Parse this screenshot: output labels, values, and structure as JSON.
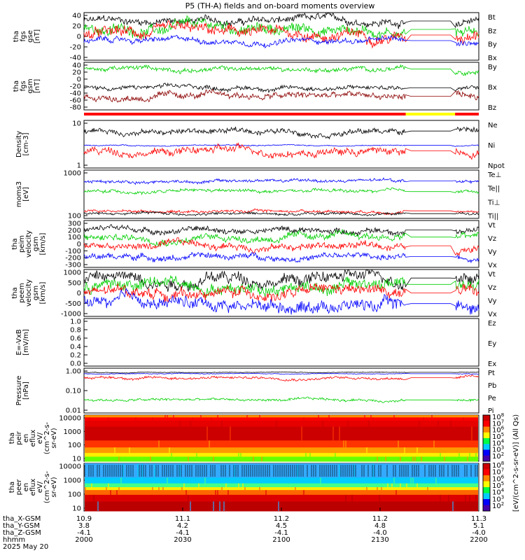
{
  "colors": {
    "black": "#000000",
    "red": "#ff0000",
    "green": "#00d000",
    "blue": "#0000ff",
    "darkred": "#8b0000",
    "yellow": "#ffff00"
  },
  "chart_data": {
    "type": "line",
    "title": "P5 (TH-A) fields and on-board moments overview",
    "x_ticks": [
      {
        "label": "10.9",
        "pos": "2000"
      },
      {
        "label": "11.1",
        "pos": "2030"
      },
      {
        "label": "11.2",
        "pos": "2100"
      },
      {
        "label": "11.2",
        "pos": "2130"
      },
      {
        "label": "11.3",
        "pos": "2200"
      }
    ],
    "x_range": [
      "2000",
      "2200"
    ],
    "panels": [
      {
        "id": "fgs",
        "ylabel": [
          "tha",
          "fgs",
          "gse",
          "[nT]"
        ],
        "yticks": [
          "40",
          "20",
          "0",
          "-20",
          "-40"
        ],
        "ylim": [
          -40,
          45
        ],
        "legend": [
          {
            "text": "Bt",
            "color": "black"
          },
          {
            "text": "Bz",
            "color": "red"
          },
          {
            "text": "By",
            "color": "green"
          },
          {
            "text": "Bx",
            "color": "blue"
          }
        ],
        "series": [
          {
            "color": "black",
            "base": 30,
            "amp": 8
          },
          {
            "color": "green",
            "base": 15,
            "amp": 12
          },
          {
            "color": "red",
            "base": 5,
            "amp": 12
          },
          {
            "color": "blue",
            "base": -5,
            "amp": 6
          }
        ]
      },
      {
        "id": "fgs_gsm",
        "ylabel": [
          "tha",
          "fgs",
          "gsm",
          "[nT]"
        ],
        "yticks": [
          "40",
          "20",
          "0",
          "-20",
          "-40",
          "-60",
          "-80"
        ],
        "ylim": [
          -95,
          45
        ],
        "legend": [
          {
            "text": "By",
            "color": "green"
          },
          {
            "text": "Bx",
            "color": "black"
          },
          {
            "text": "Bz",
            "color": "darkred"
          }
        ],
        "series": [
          {
            "color": "green",
            "base": 25,
            "amp": 8
          },
          {
            "color": "black",
            "base": -30,
            "amp": 8
          },
          {
            "color": "darkred",
            "base": -55,
            "amp": 12
          }
        ]
      },
      {
        "id": "mode_bar",
        "ylabel": [],
        "yticks": [],
        "legend": [],
        "bar_segments": [
          {
            "from": 0.0,
            "to": 0.815,
            "color": "red"
          },
          {
            "from": 0.815,
            "to": 0.94,
            "color": "yellow"
          },
          {
            "from": 0.94,
            "to": 1.0,
            "color": "red"
          }
        ]
      },
      {
        "id": "density",
        "ylabel": [
          "Density",
          "[cm-3]"
        ],
        "yticks": [
          "10",
          "1"
        ],
        "log": true,
        "ylim": [
          0.5,
          30
        ],
        "legend": [
          {
            "text": "Ne",
            "color": "red"
          },
          {
            "text": "Ni",
            "color": "black"
          },
          {
            "text": "Npot",
            "color": "blue"
          }
        ],
        "series": [
          {
            "color": "black",
            "base": 12,
            "amp": 0.25
          },
          {
            "color": "blue",
            "base": 3.5,
            "amp": 0.05
          },
          {
            "color": "red",
            "base": 2.2,
            "amp": 0.35
          }
        ]
      },
      {
        "id": "temperature",
        "ylabel": [
          "moms3",
          "[eV]"
        ],
        "yticks": [
          "1000",
          "100"
        ],
        "log": true,
        "ylim": [
          50,
          1500
        ],
        "legend": [
          {
            "text": "Te⊥",
            "color": "red"
          },
          {
            "text": "Te||",
            "color": "black"
          },
          {
            "text": "Ti⊥",
            "color": "green"
          },
          {
            "text": "Ti||",
            "color": "green"
          }
        ],
        "series": [
          {
            "color": "blue",
            "base": 700,
            "amp": 0.12
          },
          {
            "color": "green",
            "base": 330,
            "amp": 0.12
          },
          {
            "color": "red",
            "base": 85,
            "amp": 0.1
          },
          {
            "color": "black",
            "base": 70,
            "amp": 0.1
          }
        ]
      },
      {
        "id": "peim_velocity",
        "ylabel": [
          "tha",
          "peim",
          "velocity",
          "gsm",
          "[km/s]"
        ],
        "yticks": [
          "300",
          "200",
          "100",
          "0",
          "-100",
          "-200",
          "-300"
        ],
        "ylim": [
          -300,
          350
        ],
        "legend": [
          {
            "text": "Vt",
            "color": "black"
          },
          {
            "text": "Vz",
            "color": "red"
          },
          {
            "text": "Vy",
            "color": "green"
          },
          {
            "text": "Vx",
            "color": "blue"
          }
        ],
        "series": [
          {
            "color": "black",
            "base": 220,
            "amp": 50
          },
          {
            "color": "green",
            "base": 120,
            "amp": 60
          },
          {
            "color": "red",
            "base": 0,
            "amp": 60
          },
          {
            "color": "blue",
            "base": -150,
            "amp": 50
          }
        ]
      },
      {
        "id": "peem_velocity",
        "ylabel": [
          "tha",
          "peem",
          "velocity",
          "gsm",
          "[km/s]"
        ],
        "yticks": [
          "1000",
          "500",
          "0",
          "-500",
          "-1000"
        ],
        "ylim": [
          -1100,
          1100
        ],
        "legend": [
          {
            "text": "Vt",
            "color": "black"
          },
          {
            "text": "Vz",
            "color": "red"
          },
          {
            "text": "Vy",
            "color": "green"
          },
          {
            "text": "Vx",
            "color": "blue"
          }
        ],
        "series": [
          {
            "color": "black",
            "base": 700,
            "amp": 350
          },
          {
            "color": "green",
            "base": 400,
            "amp": 350
          },
          {
            "color": "red",
            "base": 0,
            "amp": 300
          },
          {
            "color": "blue",
            "base": -500,
            "amp": 350
          }
        ]
      },
      {
        "id": "efield",
        "ylabel": [
          "E=-VxB",
          "[mV/m]"
        ],
        "yticks": [
          "1.0",
          "0.8",
          "0.6",
          "0.4",
          "0.2",
          "0.0"
        ],
        "ylim": [
          0,
          1
        ],
        "legend": [
          {
            "text": "Ez",
            "color": "red"
          },
          {
            "text": "Ey",
            "color": "green"
          },
          {
            "text": "Ex",
            "color": "blue"
          }
        ],
        "series": []
      },
      {
        "id": "pressure",
        "ylabel": [
          "Pressure",
          "[nPa]"
        ],
        "yticks": [
          "1.00",
          "0.10",
          "0.01"
        ],
        "log": true,
        "ylim": [
          0.003,
          2
        ],
        "legend": [
          {
            "text": "Pt",
            "color": "black"
          },
          {
            "text": "Pb",
            "color": "red"
          },
          {
            "text": "Pe",
            "color": "green"
          },
          {
            "text": "Pi",
            "color": "blue"
          }
        ],
        "series": [
          {
            "color": "black",
            "base": 1.1,
            "amp": 0.05
          },
          {
            "color": "blue",
            "base": 0.9,
            "amp": 0.05
          },
          {
            "color": "red",
            "base": 0.5,
            "amp": 0.2
          },
          {
            "color": "green",
            "base": 0.02,
            "amp": 0.2
          }
        ]
      },
      {
        "id": "peir_eflux",
        "type": "heatmap",
        "ylabel": [
          "tha",
          "peir",
          "en",
          "eflux",
          "eV/",
          "(cm^2-s-",
          "sr-eV)"
        ],
        "yticks": [
          "10000",
          "1000",
          "100",
          "10"
        ]
      },
      {
        "id": "peer_eflux",
        "type": "heatmap",
        "ylabel": [
          "tha",
          "peer",
          "en",
          "eflux",
          "eV/",
          "(cm^2-s-",
          "sr-eV)"
        ],
        "yticks": [
          "10000",
          "1000",
          "100",
          "10"
        ]
      }
    ],
    "colorbar": {
      "label": "[eV/(cm^2-s-sr-eV)] (All Qs)",
      "ticks_top": [
        "10^8",
        "10^7",
        "10^6",
        "10^5",
        "10^4",
        "10^3",
        "10^2"
      ],
      "ticks_bottom": [
        "10^8",
        "10^7",
        "10^6",
        "10^5",
        "10^4",
        "10^3",
        "10^2"
      ]
    },
    "footer": {
      "labels": [
        "tha_X-GSM",
        "tha_Y-GSM",
        "tha_Z-GSM",
        "hhmm",
        "2025 May 20"
      ],
      "rows": [
        [
          "10.9",
          "11.1",
          "11.2",
          "11.2",
          "11.3"
        ],
        [
          "3.8",
          "4.2",
          "4.5",
          "4.8",
          "5.1"
        ],
        [
          "-4.1",
          "-4.1",
          "-4.1",
          "-4.0",
          "-4.0"
        ],
        [
          "2000",
          "2030",
          "2100",
          "2130",
          "2200"
        ]
      ]
    }
  }
}
